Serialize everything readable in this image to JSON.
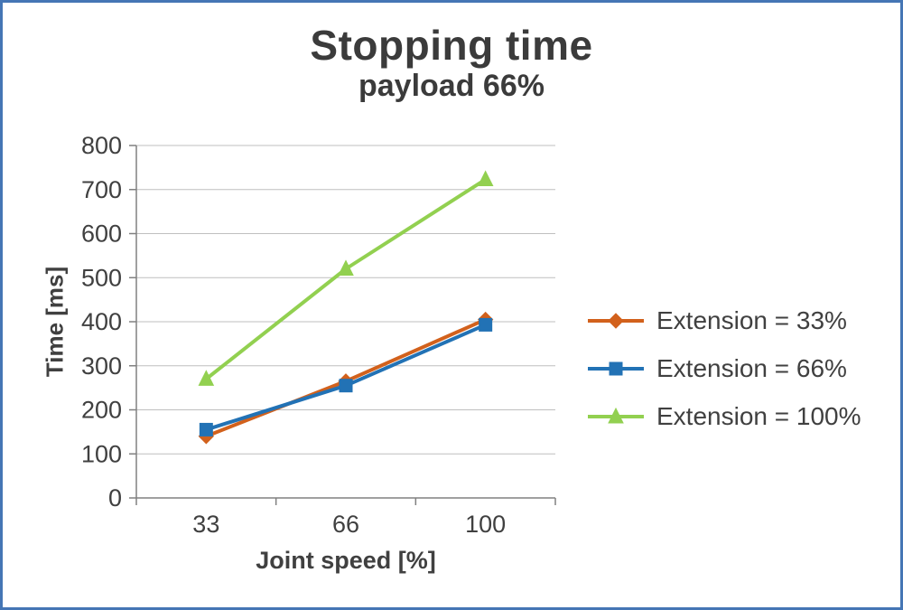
{
  "page": {
    "background": "#ffffff",
    "border_color": "#4576b5"
  },
  "chart_data": {
    "type": "line",
    "title": "Stopping time",
    "subtitle": "payload 66%",
    "xlabel": "Joint speed [%]",
    "ylabel": "Time [ms]",
    "categories": [
      "33",
      "66",
      "100"
    ],
    "ylim": [
      0,
      800
    ],
    "ytick_step": 100,
    "grid": true,
    "legend_position": "right",
    "series": [
      {
        "name": "Extension = 33%",
        "marker": "diamond",
        "color": "#d2611c",
        "values": [
          140,
          265,
          405
        ]
      },
      {
        "name": "Extension = 66%",
        "marker": "square",
        "color": "#2272b5",
        "values": [
          155,
          255,
          393
        ]
      },
      {
        "name": "Extension = 100%",
        "marker": "triangle",
        "color": "#92d050",
        "values": [
          270,
          520,
          723
        ]
      }
    ],
    "colors": {
      "grid": "#bfbfbf",
      "axis": "#808080",
      "text": "#404040"
    }
  }
}
